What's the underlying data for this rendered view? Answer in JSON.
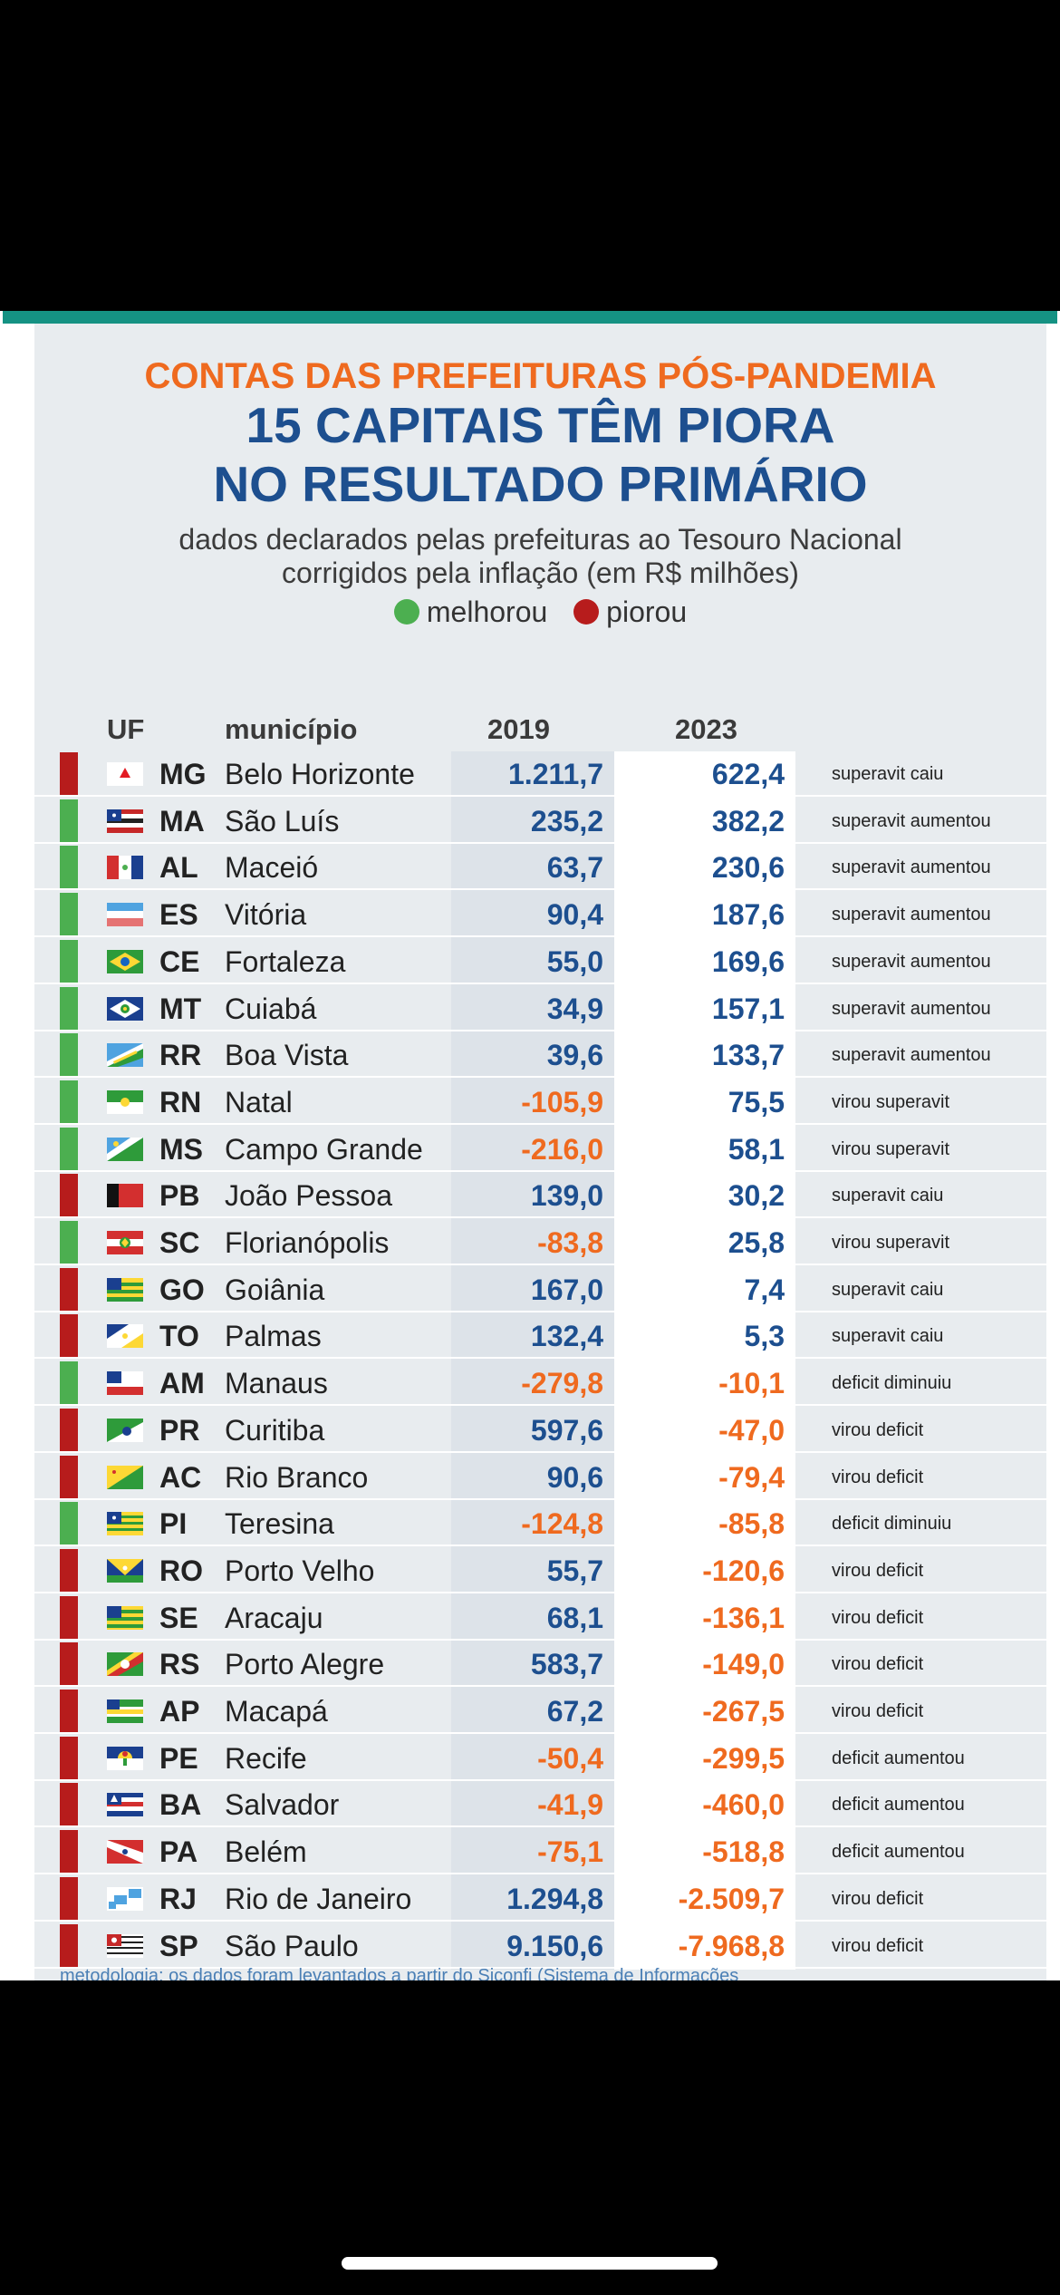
{
  "header": {
    "kicker": "CONTAS DAS PREFEITURAS PÓS-PANDEMIA",
    "title_line1": "15 CAPITAIS TÊM PIORA",
    "title_line2": "NO RESULTADO PRIMÁRIO",
    "subtitle_line1": "dados declarados pelas prefeituras ao Tesouro Nacional",
    "subtitle_line2": "corrigidos pela inflação (em R$ milhões)"
  },
  "legend": [
    {
      "label": "melhorou",
      "color": "#4caf50"
    },
    {
      "label": "piorou",
      "color": "#b71c1c"
    }
  ],
  "colors": {
    "positive": "#1d4f8f",
    "negative": "#ef6a1f",
    "improved": "#4caf50",
    "worsened": "#b71c1c"
  },
  "chart_data": {
    "type": "table",
    "title": "15 CAPITAIS TÊM PIORA NO RESULTADO PRIMÁRIO",
    "columns": [
      "UF",
      "município",
      "2019",
      "2023"
    ],
    "rows": [
      {
        "uf": "MG",
        "city": "Belo Horizonte",
        "v2019": "1.211,7",
        "v2023": "622,4",
        "status": "superavit caiu",
        "trend": "piorou"
      },
      {
        "uf": "MA",
        "city": "São Luís",
        "v2019": "235,2",
        "v2023": "382,2",
        "status": "superavit aumentou",
        "trend": "melhorou"
      },
      {
        "uf": "AL",
        "city": "Maceió",
        "v2019": "63,7",
        "v2023": "230,6",
        "status": "superavit aumentou",
        "trend": "melhorou"
      },
      {
        "uf": "ES",
        "city": "Vitória",
        "v2019": "90,4",
        "v2023": "187,6",
        "status": "superavit aumentou",
        "trend": "melhorou"
      },
      {
        "uf": "CE",
        "city": "Fortaleza",
        "v2019": "55,0",
        "v2023": "169,6",
        "status": "superavit aumentou",
        "trend": "melhorou"
      },
      {
        "uf": "MT",
        "city": "Cuiabá",
        "v2019": "34,9",
        "v2023": "157,1",
        "status": "superavit aumentou",
        "trend": "melhorou"
      },
      {
        "uf": "RR",
        "city": "Boa Vista",
        "v2019": "39,6",
        "v2023": "133,7",
        "status": "superavit aumentou",
        "trend": "melhorou"
      },
      {
        "uf": "RN",
        "city": "Natal",
        "v2019": "-105,9",
        "v2023": "75,5",
        "status": "virou superavit",
        "trend": "melhorou"
      },
      {
        "uf": "MS",
        "city": "Campo Grande",
        "v2019": "-216,0",
        "v2023": "58,1",
        "status": "virou superavit",
        "trend": "melhorou"
      },
      {
        "uf": "PB",
        "city": "João Pessoa",
        "v2019": "139,0",
        "v2023": "30,2",
        "status": "superavit caiu",
        "trend": "piorou"
      },
      {
        "uf": "SC",
        "city": "Florianópolis",
        "v2019": "-83,8",
        "v2023": "25,8",
        "status": "virou superavit",
        "trend": "melhorou"
      },
      {
        "uf": "GO",
        "city": "Goiânia",
        "v2019": "167,0",
        "v2023": "7,4",
        "status": "superavit caiu",
        "trend": "piorou"
      },
      {
        "uf": "TO",
        "city": "Palmas",
        "v2019": "132,4",
        "v2023": "5,3",
        "status": "superavit caiu",
        "trend": "piorou"
      },
      {
        "uf": "AM",
        "city": "Manaus",
        "v2019": "-279,8",
        "v2023": "-10,1",
        "status": "deficit diminuiu",
        "trend": "melhorou"
      },
      {
        "uf": "PR",
        "city": "Curitiba",
        "v2019": "597,6",
        "v2023": "-47,0",
        "status": "virou deficit",
        "trend": "piorou"
      },
      {
        "uf": "AC",
        "city": "Rio Branco",
        "v2019": "90,6",
        "v2023": "-79,4",
        "status": "virou deficit",
        "trend": "piorou"
      },
      {
        "uf": "PI",
        "city": "Teresina",
        "v2019": "-124,8",
        "v2023": "-85,8",
        "status": "deficit diminuiu",
        "trend": "melhorou"
      },
      {
        "uf": "RO",
        "city": "Porto Velho",
        "v2019": "55,7",
        "v2023": "-120,6",
        "status": "virou deficit",
        "trend": "piorou"
      },
      {
        "uf": "SE",
        "city": "Aracaju",
        "v2019": "68,1",
        "v2023": "-136,1",
        "status": "virou deficit",
        "trend": "piorou"
      },
      {
        "uf": "RS",
        "city": "Porto Alegre",
        "v2019": "583,7",
        "v2023": "-149,0",
        "status": "virou deficit",
        "trend": "piorou"
      },
      {
        "uf": "AP",
        "city": "Macapá",
        "v2019": "67,2",
        "v2023": "-267,5",
        "status": "virou deficit",
        "trend": "piorou"
      },
      {
        "uf": "PE",
        "city": "Recife",
        "v2019": "-50,4",
        "v2023": "-299,5",
        "status": "deficit aumentou",
        "trend": "piorou"
      },
      {
        "uf": "BA",
        "city": "Salvador",
        "v2019": "-41,9",
        "v2023": "-460,0",
        "status": "deficit aumentou",
        "trend": "piorou"
      },
      {
        "uf": "PA",
        "city": "Belém",
        "v2019": "-75,1",
        "v2023": "-518,8",
        "status": "deficit aumentou",
        "trend": "piorou"
      },
      {
        "uf": "RJ",
        "city": "Rio de Janeiro",
        "v2019": "1.294,8",
        "v2023": "-2.509,7",
        "status": "virou deficit",
        "trend": "piorou"
      },
      {
        "uf": "SP",
        "city": "São Paulo",
        "v2019": "9.150,6",
        "v2023": "-7.968,8",
        "status": "virou deficit",
        "trend": "piorou"
      }
    ]
  },
  "footnote": "metodologia: os dados foram levantados a partir do Siconfi (Sistema de Informações"
}
